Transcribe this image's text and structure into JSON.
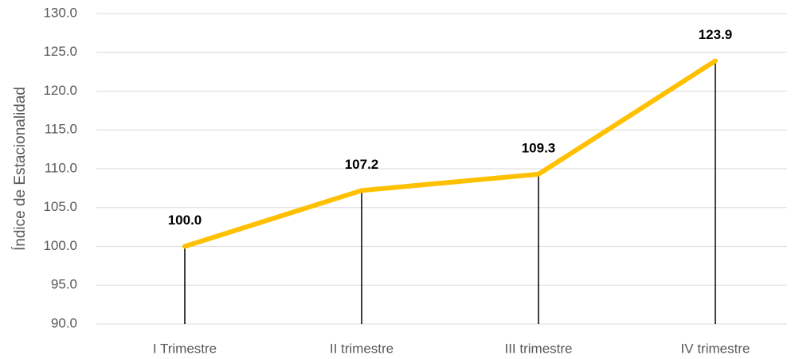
{
  "chart_data": {
    "type": "line",
    "y_label": "Índice de Estacionalidad",
    "categories": [
      "I Trimestre",
      "II trimestre",
      "III trimestre",
      "IV trimestre"
    ],
    "values": [
      100.0,
      107.2,
      109.3,
      123.9
    ],
    "value_labels": [
      "100.0",
      "107.2",
      "109.3",
      "123.9"
    ],
    "color": "#ffc000",
    "drop_lines": true,
    "ylim": [
      90,
      130
    ],
    "yticks": [
      {
        "value": 90,
        "label": "90.0"
      },
      {
        "value": 95,
        "label": "95.0"
      },
      {
        "value": 100,
        "label": "100.0"
      },
      {
        "value": 105,
        "label": "105.0"
      },
      {
        "value": 110,
        "label": "110.0"
      },
      {
        "value": 115,
        "label": "115.0"
      },
      {
        "value": 120,
        "label": "120.0"
      },
      {
        "value": 125,
        "label": "125.0"
      },
      {
        "value": 130,
        "label": "130.0"
      }
    ],
    "grid": true
  }
}
